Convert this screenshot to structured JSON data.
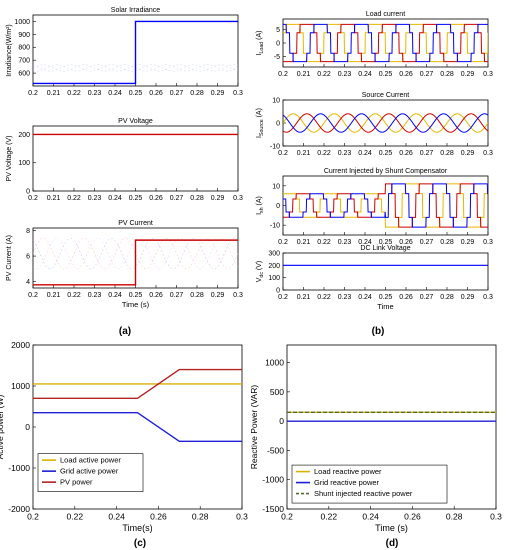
{
  "figure_labels": {
    "a": "(a)",
    "b": "(b)",
    "c": "(c)",
    "d": "(d)"
  },
  "colors": {
    "blue": "#0000ff",
    "red": "#cc0000",
    "yellow": "#e6b800",
    "purple": "#7a1fa2",
    "orange": "#ff8c00",
    "grid_yellow": "#d9b200",
    "grid_blue": "#1f1fd6",
    "pv_red": "#b22222",
    "dash_green": "#556b2f"
  },
  "chart_data": [
    {
      "id": "solar",
      "type": "line",
      "title": "Solar Irradiance",
      "ylabel": "Irradiance(W/m²)",
      "xlabel": "",
      "x_ticks": [
        "0.2",
        "0.21",
        "0.22",
        "0.23",
        "0.24",
        "0.25",
        "0.26",
        "0.27",
        "0.28",
        "0.29",
        "0.3"
      ],
      "y_ticks": [
        "600",
        "700",
        "800",
        "900",
        "1000"
      ],
      "xlim": [
        0.2,
        0.3
      ],
      "ylim": [
        500,
        1050
      ],
      "series": [
        {
          "x": [
            0.2,
            0.25,
            0.25,
            0.3
          ],
          "y": [
            520,
            520,
            1000,
            1000
          ]
        }
      ]
    },
    {
      "id": "pvv",
      "type": "line",
      "title": "PV Voltage",
      "ylabel": "PV Voltage (V)",
      "xlabel": "",
      "x_ticks": [
        "0.2",
        "0.21",
        "0.22",
        "0.23",
        "0.24",
        "0.25",
        "0.26",
        "0.27",
        "0.28",
        "0.29",
        "0.3"
      ],
      "y_ticks": [
        "0",
        "100",
        "200"
      ],
      "xlim": [
        0.2,
        0.3
      ],
      "ylim": [
        0,
        230
      ],
      "series": [
        {
          "x": [
            0.2,
            0.3
          ],
          "y": [
            200,
            200
          ]
        }
      ]
    },
    {
      "id": "pvi",
      "type": "line",
      "title": "PV Current",
      "ylabel": "PV Current (A)",
      "xlabel": "Time (s)",
      "x_ticks": [
        "0.2",
        "0.21",
        "0.22",
        "0.23",
        "0.24",
        "0.25",
        "0.26",
        "0.27",
        "0.28",
        "0.29",
        "0.3"
      ],
      "y_ticks": [
        "4",
        "6",
        "8"
      ],
      "xlim": [
        0.2,
        0.3
      ],
      "ylim": [
        3.5,
        8.2
      ],
      "series": [
        {
          "x": [
            0.2,
            0.25,
            0.25,
            0.3
          ],
          "y": [
            3.75,
            3.75,
            7.25,
            7.25
          ]
        }
      ]
    },
    {
      "id": "load",
      "type": "line",
      "title": "Load current",
      "ylabel": "I_Load (A)",
      "xlabel": "",
      "x_ticks": [
        "0.2",
        "0.21",
        "0.22",
        "0.23",
        "0.24",
        "0.25",
        "0.26",
        "0.27",
        "0.28",
        "0.29",
        "0.3"
      ],
      "y_ticks": [
        "-5",
        "0",
        "5"
      ],
      "xlim": [
        0.2,
        0.3
      ],
      "ylim": [
        -9,
        9
      ],
      "waveform": {
        "kind": "square_3phase",
        "amplitude": 7,
        "frequency_hz": 50
      }
    },
    {
      "id": "source",
      "type": "line",
      "title": "Source Current",
      "ylabel": "I_Source (A)",
      "xlabel": "",
      "x_ticks": [
        "0.2",
        "0.21",
        "0.22",
        "0.23",
        "0.24",
        "0.25",
        "0.26",
        "0.27",
        "0.28",
        "0.29",
        "0.3"
      ],
      "y_ticks": [
        "-10",
        "0",
        "10"
      ],
      "xlim": [
        0.2,
        0.3
      ],
      "ylim": [
        -10,
        10
      ],
      "waveform": {
        "kind": "sine_3phase",
        "amplitude": 4,
        "frequency_hz": 50
      }
    },
    {
      "id": "shunt",
      "type": "line",
      "title": "Current Injected by Shunt Compensator",
      "ylabel": "I_sh (A)",
      "xlabel": "",
      "x_ticks": [
        "0.2",
        "0.21",
        "0.22",
        "0.23",
        "0.24",
        "0.25",
        "0.26",
        "0.27",
        "0.28",
        "0.29",
        "0.3"
      ],
      "y_ticks": [
        "-10",
        "0",
        "10"
      ],
      "xlim": [
        0.2,
        0.3
      ],
      "ylim": [
        -15,
        15
      ],
      "waveform": {
        "kind": "square_3phase_step",
        "amplitude_before": 6,
        "amplitude_after": 11,
        "step_time": 0.25,
        "frequency_hz": 50
      }
    },
    {
      "id": "dc",
      "type": "line",
      "title": "DC Link Voltage",
      "ylabel": "V_dc (V)",
      "xlabel": "Time",
      "x_ticks": [
        "0.2",
        "0.21",
        "0.22",
        "0.23",
        "0.24",
        "0.25",
        "0.26",
        "0.27",
        "0.28",
        "0.29",
        "0.3"
      ],
      "y_ticks": [
        "0",
        "100",
        "200",
        "300"
      ],
      "xlim": [
        0.2,
        0.3
      ],
      "ylim": [
        0,
        300
      ],
      "series": [
        {
          "x": [
            0.2,
            0.3
          ],
          "y": [
            200,
            200
          ]
        }
      ]
    },
    {
      "id": "active",
      "type": "line",
      "title": "",
      "ylabel": "Active power (W)",
      "xlabel": "Time(s)",
      "x_ticks": [
        "0.2",
        "0.22",
        "0.24",
        "0.26",
        "0.28",
        "0.3"
      ],
      "y_ticks": [
        "-2000",
        "-1000",
        "0",
        "1000",
        "2000"
      ],
      "xlim": [
        0.2,
        0.3
      ],
      "ylim": [
        -2000,
        2000
      ],
      "series": [
        {
          "name": "Load active power",
          "x": [
            0.2,
            0.3
          ],
          "y": [
            1050,
            1050
          ]
        },
        {
          "name": "Grid active power",
          "x": [
            0.2,
            0.25,
            0.27,
            0.3
          ],
          "y": [
            350,
            350,
            -350,
            -350
          ]
        },
        {
          "name": "PV power",
          "x": [
            0.2,
            0.25,
            0.27,
            0.3
          ],
          "y": [
            700,
            700,
            1400,
            1400
          ]
        }
      ],
      "legend": "lower-left"
    },
    {
      "id": "reactive",
      "type": "line",
      "title": "",
      "ylabel": "Reactive Power (VAR)",
      "xlabel": "Time (s)",
      "x_ticks": [
        "0.2",
        "0.22",
        "0.24",
        "0.26",
        "0.28",
        "0.3"
      ],
      "y_ticks": [
        "-1500",
        "-1000",
        "-500",
        "0",
        "500",
        "1000"
      ],
      "xlim": [
        0.2,
        0.3
      ],
      "ylim": [
        -1500,
        1300
      ],
      "series": [
        {
          "name": "Load reactive power",
          "x": [
            0.2,
            0.3
          ],
          "y": [
            150,
            150
          ]
        },
        {
          "name": "Grid reactive power",
          "x": [
            0.2,
            0.3
          ],
          "y": [
            0,
            0
          ]
        },
        {
          "name": "Shunt injected reactive power",
          "x": [
            0.2,
            0.3
          ],
          "y": [
            150,
            150
          ]
        }
      ],
      "legend": "lower-left"
    }
  ]
}
